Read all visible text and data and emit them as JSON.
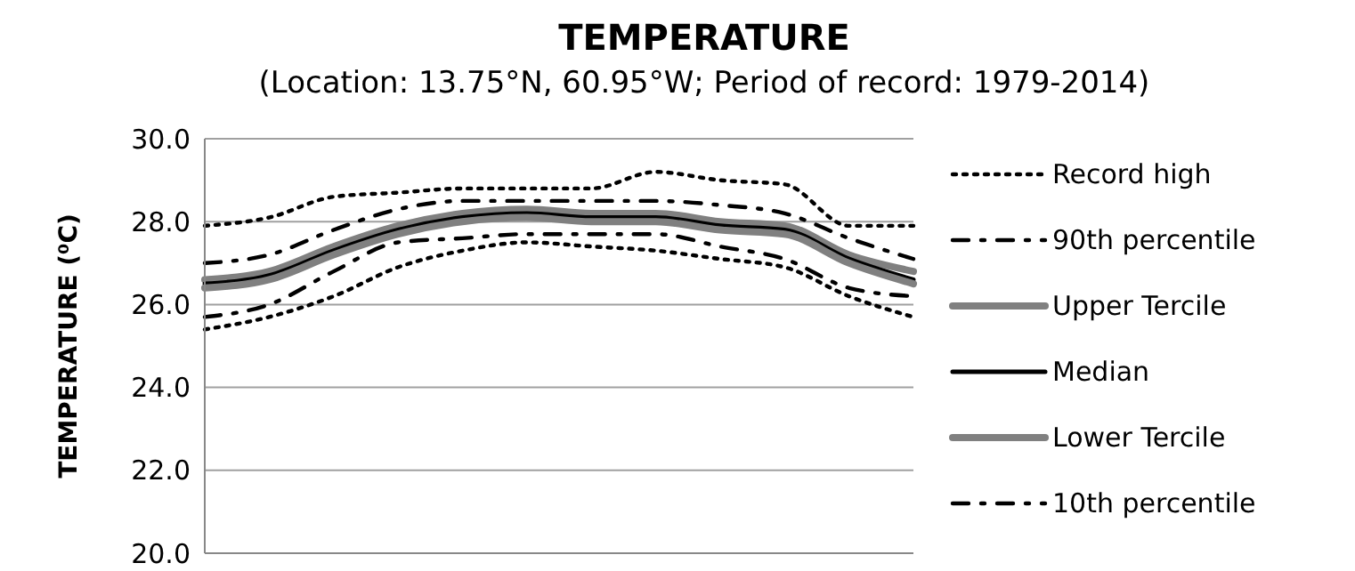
{
  "chart_data": {
    "type": "line",
    "title": "TEMPERATURE",
    "subtitle": "(Location: 13.75°N, 60.95°W; Period of record: 1979-2014)",
    "ylabel": "TEMPERATURE (⁰C)",
    "categories": [
      null,
      null,
      null,
      null,
      null,
      null,
      null,
      null,
      null,
      null,
      null,
      null
    ],
    "series": [
      {
        "name": "Record high",
        "color": "#000000",
        "line_style": "dotted",
        "values": [
          27.9,
          28.1,
          28.6,
          28.7,
          28.8,
          28.8,
          28.8,
          29.2,
          29.0,
          28.9,
          27.9,
          27.9
        ]
      },
      {
        "name": "90th percentile",
        "color": "#000000",
        "line_style": "dashed",
        "values": [
          27.0,
          27.2,
          27.8,
          28.3,
          28.5,
          28.5,
          28.5,
          28.5,
          28.4,
          28.2,
          27.6,
          27.1
        ]
      },
      {
        "name": "Upper Tercile",
        "color": "#808080",
        "line_style": "solid",
        "values": [
          26.6,
          26.8,
          27.4,
          27.9,
          28.2,
          28.3,
          28.2,
          28.2,
          28.0,
          27.9,
          27.2,
          26.8
        ]
      },
      {
        "name": "Median",
        "color": "#000000",
        "line_style": "solid",
        "values": [
          26.5,
          26.7,
          27.3,
          27.8,
          28.1,
          28.2,
          28.1,
          28.1,
          27.9,
          27.8,
          27.1,
          26.6
        ]
      },
      {
        "name": "Lower Tercile",
        "color": "#808080",
        "line_style": "solid",
        "values": [
          26.4,
          26.6,
          27.2,
          27.7,
          28.0,
          28.1,
          28.0,
          28.0,
          27.8,
          27.7,
          27.0,
          26.5
        ]
      },
      {
        "name": "10th percentile",
        "color": "#000000",
        "line_style": "dashed",
        "values": [
          25.7,
          26.0,
          26.8,
          27.5,
          27.6,
          27.7,
          27.7,
          27.7,
          27.4,
          27.1,
          26.4,
          26.2
        ]
      },
      {
        "color": "#000000",
        "line_style": "dotted",
        "values": [
          25.4,
          25.7,
          26.2,
          26.9,
          27.3,
          27.5,
          27.4,
          27.3,
          27.1,
          26.9,
          26.2,
          25.7
        ]
      }
    ],
    "ylim": [
      20,
      30
    ],
    "yticks": [
      {
        "value": 20,
        "label": "20.0"
      },
      {
        "value": 22,
        "label": "22.0"
      },
      {
        "value": 24,
        "label": "24.0"
      },
      {
        "value": 26,
        "label": "26.0"
      },
      {
        "value": 28,
        "label": "28.0"
      },
      {
        "value": 30,
        "label": "30.0"
      }
    ],
    "grid": "y",
    "legend": "right",
    "tick_labels": "y",
    "marker": "none"
  }
}
